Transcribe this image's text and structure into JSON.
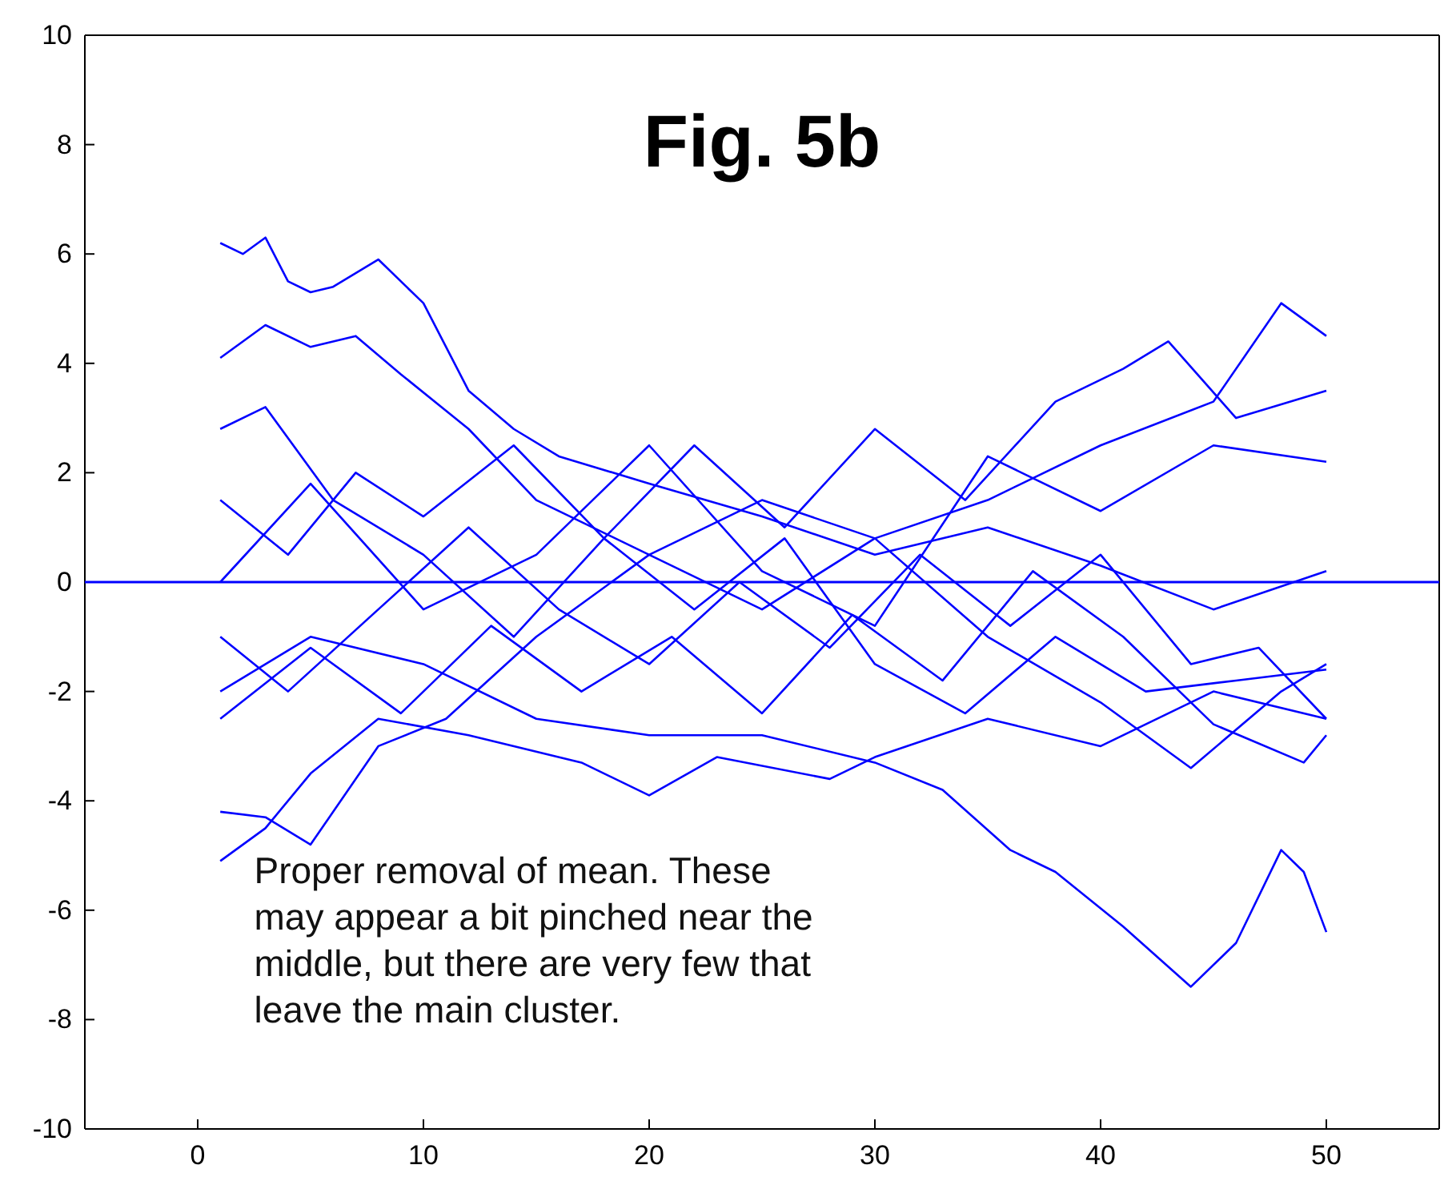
{
  "chart_data": {
    "type": "line",
    "title": "Fig. 5b",
    "annotations": [
      "Proper removal of mean. These\nmay appear a bit pinched near the\nmiddle, but there are very few that\nleave the main cluster."
    ],
    "xlim": [
      -5,
      55
    ],
    "xticks": [
      0,
      10,
      20,
      30,
      40,
      50
    ],
    "ylim": [
      -10,
      10
    ],
    "yticks": [
      -10,
      -8,
      -6,
      -4,
      -2,
      0,
      2,
      4,
      6,
      8,
      10
    ],
    "grid": false,
    "ref_lines": [
      {
        "axis": "y",
        "value": 0,
        "color": "#0000ff"
      }
    ],
    "series": [
      {
        "color": "#0000ff",
        "x": [
          1,
          2,
          3,
          4,
          5,
          6,
          8,
          10,
          12,
          14,
          16,
          20,
          25,
          30,
          35,
          40,
          45,
          50
        ],
        "values": [
          6.2,
          6.0,
          6.3,
          5.5,
          5.3,
          5.4,
          5.9,
          5.1,
          3.5,
          2.8,
          2.3,
          1.8,
          1.2,
          0.5,
          1.0,
          0.3,
          -0.5,
          0.2
        ]
      },
      {
        "color": "#0000ff",
        "x": [
          1,
          3,
          5,
          7,
          9,
          12,
          15,
          20,
          25,
          30,
          35,
          40,
          45,
          48,
          50
        ],
        "values": [
          4.1,
          4.7,
          4.3,
          4.5,
          3.8,
          2.8,
          1.5,
          0.5,
          -0.5,
          0.8,
          1.5,
          2.5,
          3.3,
          5.1,
          4.5
        ]
      },
      {
        "color": "#0000ff",
        "x": [
          1,
          5,
          10,
          15,
          20,
          25,
          30,
          33,
          36,
          38,
          41,
          44,
          46,
          48,
          49,
          50
        ],
        "values": [
          -2.0,
          -1.0,
          -1.5,
          -2.5,
          -2.8,
          -2.8,
          -3.3,
          -3.8,
          -4.9,
          -5.3,
          -6.3,
          -7.4,
          -6.6,
          -4.9,
          -5.3,
          -6.4
        ]
      },
      {
        "color": "#0000ff",
        "x": [
          1,
          3,
          5,
          8,
          12,
          17,
          20,
          23,
          28,
          30,
          35,
          40,
          45,
          50
        ],
        "values": [
          -5.1,
          -4.5,
          -3.5,
          -2.5,
          -2.8,
          -3.3,
          -3.9,
          -3.2,
          -3.6,
          -3.2,
          -2.5,
          -3.0,
          -2.0,
          -2.5
        ]
      },
      {
        "color": "#0000ff",
        "x": [
          1,
          3,
          5,
          8,
          11,
          15,
          20,
          25,
          30,
          35,
          40,
          44,
          48,
          50
        ],
        "values": [
          -4.2,
          -4.3,
          -4.8,
          -3.0,
          -2.5,
          -1.0,
          0.5,
          1.5,
          0.8,
          -1.0,
          -2.2,
          -3.4,
          -2.0,
          -1.5
        ]
      },
      {
        "color": "#0000ff",
        "x": [
          1,
          3,
          6,
          10,
          14,
          18,
          22,
          26,
          30,
          34,
          38,
          41,
          43,
          46,
          50
        ],
        "values": [
          2.8,
          3.2,
          1.5,
          0.5,
          -1.0,
          0.8,
          2.5,
          1.0,
          2.8,
          1.5,
          3.3,
          3.9,
          4.4,
          3.0,
          3.5
        ]
      },
      {
        "color": "#0000ff",
        "x": [
          1,
          4,
          8,
          12,
          16,
          20,
          24,
          28,
          32,
          36,
          40,
          44,
          47,
          50
        ],
        "values": [
          -1.0,
          -2.0,
          -0.5,
          1.0,
          -0.5,
          -1.5,
          0,
          -1.2,
          0.5,
          -0.8,
          0.5,
          -1.5,
          -1.2,
          -2.5
        ]
      },
      {
        "color": "#0000ff",
        "x": [
          1,
          4,
          7,
          10,
          14,
          18,
          22,
          26,
          30,
          34,
          38,
          42,
          46,
          50
        ],
        "values": [
          1.5,
          0.5,
          2.0,
          1.2,
          2.5,
          0.8,
          -0.5,
          0.8,
          -1.5,
          -2.4,
          -1.0,
          -2.0,
          -1.8,
          -1.6
        ]
      },
      {
        "color": "#0000ff",
        "x": [
          1,
          5,
          10,
          15,
          20,
          25,
          30,
          35,
          40,
          45,
          50
        ],
        "values": [
          0,
          1.8,
          -0.5,
          0.5,
          2.5,
          0.2,
          -0.8,
          2.3,
          1.3,
          2.5,
          2.2
        ]
      },
      {
        "color": "#0000ff",
        "x": [
          1,
          5,
          9,
          13,
          17,
          21,
          25,
          29,
          33,
          37,
          41,
          45,
          49,
          50
        ],
        "values": [
          -2.5,
          -1.2,
          -2.4,
          -0.8,
          -2.0,
          -1.0,
          -2.4,
          -0.6,
          -1.8,
          0.2,
          -1.0,
          -2.6,
          -3.3,
          -2.8
        ]
      }
    ]
  }
}
